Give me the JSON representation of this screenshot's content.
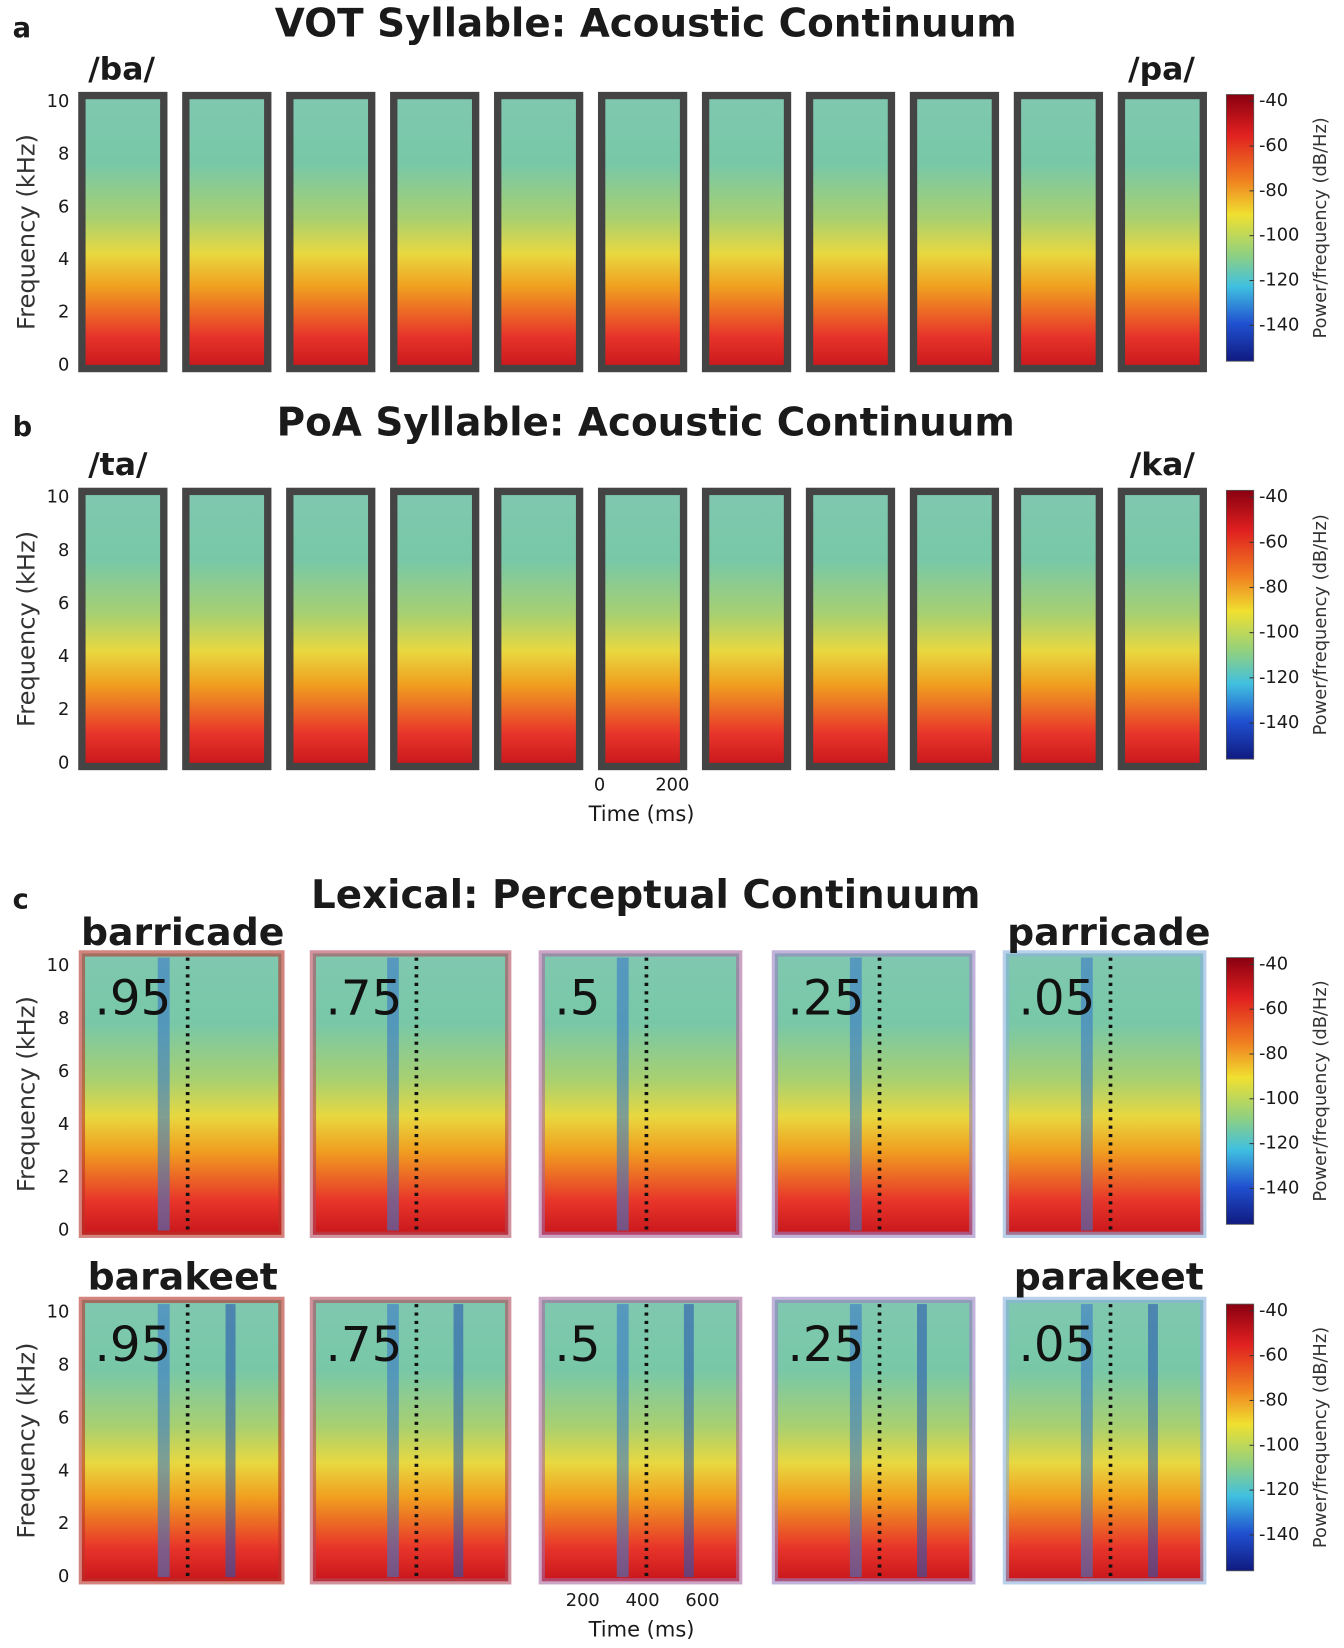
{
  "panels": [
    {
      "letter": "a",
      "title": "VOT Syllable: Acoustic Continuum",
      "endpoints": [
        "/ba/",
        "/pa/"
      ],
      "ylabel": "Frequency (kHz)",
      "ylim": [
        0,
        10
      ],
      "yticks": [
        0,
        2,
        4,
        6,
        8,
        10
      ],
      "colorbar": {
        "label": "Power/frequency (dB/Hz)",
        "clim": [
          -156,
          -37
        ],
        "ticks": [
          -40,
          -60,
          -80,
          -100,
          -120,
          -140
        ]
      }
    },
    {
      "letter": "b",
      "title": "PoA Syllable: Acoustic Continuum",
      "endpoints": [
        "/ta/",
        "/ka/"
      ],
      "ylabel": "Frequency (kHz)",
      "ylim": [
        0,
        10
      ],
      "yticks": [
        0,
        2,
        4,
        6,
        8,
        10
      ],
      "colorbar": {
        "label": "Power/frequency (dB/Hz)",
        "clim": [
          -156,
          -37
        ],
        "ticks": [
          -40,
          -60,
          -80,
          -100,
          -120,
          -140
        ]
      },
      "xlabel": "Time (ms)",
      "xlim": [
        0,
        225
      ],
      "xticks": [
        0,
        200
      ]
    },
    {
      "letter": "c",
      "title": "Lexical: Perceptual Continuum",
      "rows": [
        {
          "endpoints": [
            {
              "text": "barricade",
              "color": "#1b7f3b"
            },
            {
              "text": "parricade",
              "color": "#e3232c"
            }
          ],
          "probabilities": [
            ".95",
            ".75",
            ".5",
            ".25",
            ".05"
          ],
          "ylabel": "Frequency (kHz)",
          "ylim": [
            0,
            10
          ],
          "yticks": [
            0,
            2,
            4,
            6,
            8,
            10
          ],
          "colorbar": {
            "label": "Power/frequency (dB/Hz)",
            "clim": [
              -156,
              -37
            ],
            "ticks": [
              -40,
              -60,
              -80,
              -100,
              -120,
              -140
            ]
          }
        },
        {
          "endpoints": [
            {
              "text": "barakeet",
              "color": "#e3232c"
            },
            {
              "text": "parakeet",
              "color": "#1b7f3b"
            }
          ],
          "probabilities": [
            ".95",
            ".75",
            ".5",
            ".25",
            ".05"
          ],
          "ylabel": "Frequency (kHz)",
          "ylim": [
            0,
            10
          ],
          "yticks": [
            0,
            2,
            4,
            6,
            8,
            10
          ],
          "colorbar": {
            "label": "Power/frequency (dB/Hz)",
            "clim": [
              -156,
              -37
            ],
            "ticks": [
              -40,
              -60,
              -80,
              -100,
              -120,
              -140
            ]
          }
        }
      ],
      "xlabel": "Time (ms)",
      "xlim": [
        63,
        723
      ],
      "xticks": [
        200,
        400,
        600
      ]
    }
  ]
}
